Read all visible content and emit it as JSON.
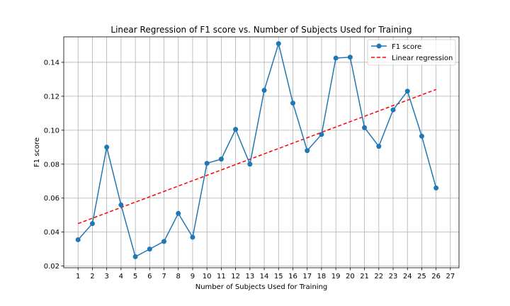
{
  "chart_data": {
    "type": "line",
    "title": "Linear Regression of F1 score vs. Number of Subjects Used for Training",
    "xlabel": "Number of Subjects Used for Training",
    "ylabel": "F1 score",
    "x_ticks": [
      1,
      2,
      3,
      4,
      5,
      6,
      7,
      8,
      9,
      10,
      11,
      12,
      13,
      14,
      15,
      16,
      17,
      18,
      19,
      20,
      21,
      22,
      23,
      24,
      25,
      26,
      27
    ],
    "y_ticks": [
      0.02,
      0.04,
      0.06,
      0.08,
      0.1,
      0.12,
      0.14
    ],
    "y_tick_labels": [
      "0.02",
      "0.04",
      "0.06",
      "0.08",
      "0.10",
      "0.12",
      "0.14"
    ],
    "xlim": [
      0,
      27.6
    ],
    "ylim": [
      0.019,
      0.155
    ],
    "grid": true,
    "legend_position": "top-right",
    "series": [
      {
        "name": "F1 score",
        "style": "line-with-markers",
        "color": "#1f77b4",
        "x": [
          1,
          2,
          3,
          4,
          5,
          6,
          7,
          8,
          9,
          10,
          11,
          12,
          13,
          14,
          15,
          16,
          17,
          18,
          19,
          20,
          21,
          22,
          23,
          24,
          25,
          26
        ],
        "values": [
          0.0355,
          0.045,
          0.09,
          0.056,
          0.0255,
          0.03,
          0.0345,
          0.051,
          0.037,
          0.0805,
          0.083,
          0.1005,
          0.08,
          0.1235,
          0.151,
          0.116,
          0.088,
          0.0975,
          0.1425,
          0.143,
          0.1015,
          0.0905,
          0.112,
          0.123,
          0.0965,
          0.066
        ]
      },
      {
        "name": "Linear regression",
        "style": "dashed",
        "color": "#ff0000",
        "x": [
          1,
          26
        ],
        "values": [
          0.045,
          0.124
        ]
      }
    ]
  }
}
